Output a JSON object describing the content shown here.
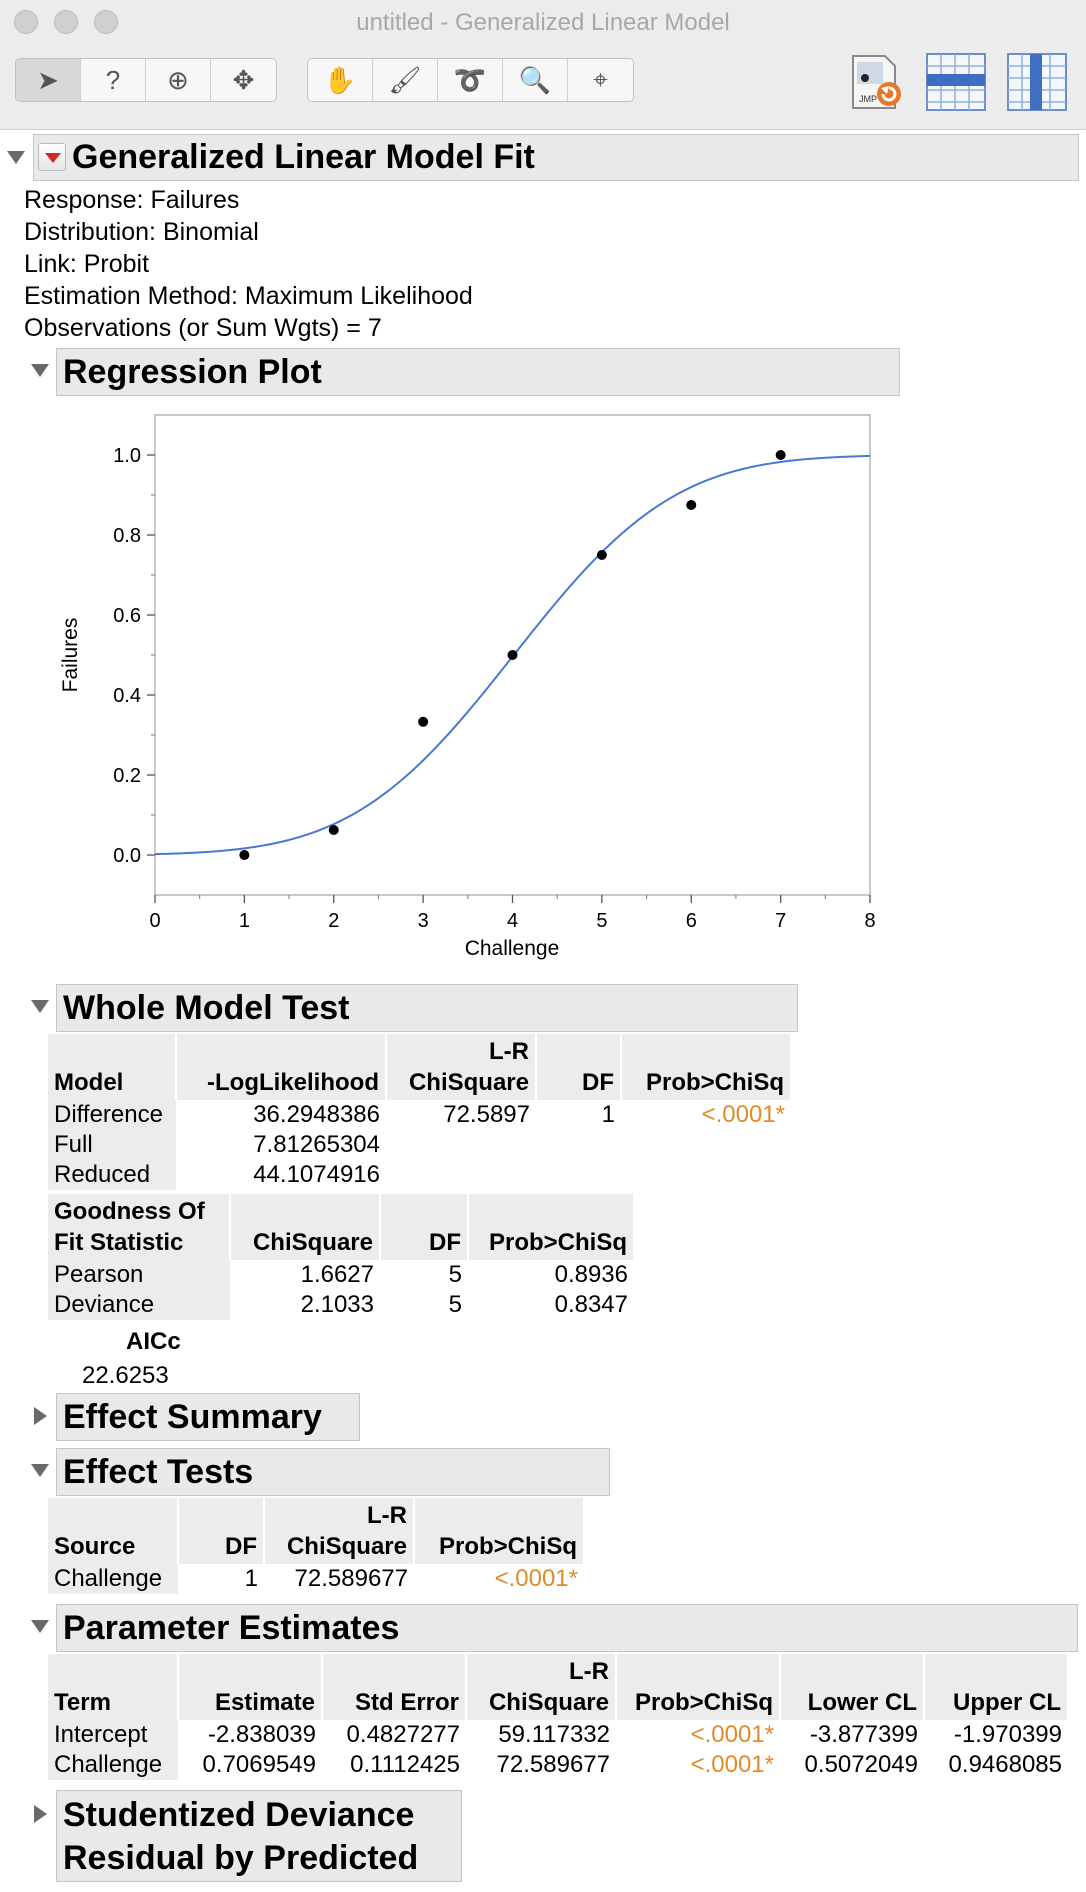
{
  "window": {
    "title": "untitled - Generalized Linear Model"
  },
  "toolbar": {
    "tools": [
      {
        "name": "arrow-tool",
        "glyph": "➤"
      },
      {
        "name": "help-tool",
        "glyph": "?"
      },
      {
        "name": "selection-tool",
        "glyph": "⊕"
      },
      {
        "name": "move-tool",
        "glyph": "✥"
      },
      {
        "name": "hand-tool",
        "glyph": "✋"
      },
      {
        "name": "brush-tool",
        "glyph": "🖌"
      },
      {
        "name": "lasso-tool",
        "glyph": "➰"
      },
      {
        "name": "magnifier-tool",
        "glyph": "🔍"
      },
      {
        "name": "crosshair-tool",
        "glyph": "⌖"
      }
    ]
  },
  "report": {
    "title": "Generalized Linear Model Fit",
    "info": {
      "response": "Response: Failures",
      "distribution": "Distribution: Binomial",
      "link": "Link: Probit",
      "method": "Estimation Method: Maximum Likelihood",
      "observations": "Observations (or Sum Wgts) = 7"
    },
    "regression_plot": {
      "title": "Regression Plot"
    },
    "whole_model_test": {
      "title": "Whole Model Test",
      "headers": {
        "model": "Model",
        "loglik": "-LogLikelihood",
        "lr_top": "L-R",
        "lr_bottom": "ChiSquare",
        "df": "DF",
        "prob": "Prob>ChiSq"
      },
      "rows": [
        {
          "model": "Difference",
          "loglik": "36.2948386",
          "chisq": "72.5897",
          "df": "1",
          "prob": "<.0001*"
        },
        {
          "model": "Full",
          "loglik": "7.81265304",
          "chisq": "",
          "df": "",
          "prob": ""
        },
        {
          "model": "Reduced",
          "loglik": "44.1074916",
          "chisq": "",
          "df": "",
          "prob": ""
        }
      ],
      "gof": {
        "headers": {
          "stat_top": "Goodness Of",
          "stat_bottom": "Fit Statistic",
          "chisq": "ChiSquare",
          "df": "DF",
          "prob": "Prob>ChiSq"
        },
        "rows": [
          {
            "stat": "Pearson",
            "chisq": "1.6627",
            "df": "5",
            "prob": "0.8936"
          },
          {
            "stat": "Deviance",
            "chisq": "2.1033",
            "df": "5",
            "prob": "0.8347"
          }
        ]
      },
      "aicc": {
        "label": "AICc",
        "value": "22.6253"
      }
    },
    "effect_summary": {
      "title": "Effect Summary"
    },
    "effect_tests": {
      "title": "Effect Tests",
      "headers": {
        "source": "Source",
        "df": "DF",
        "lr_top": "L-R",
        "lr_bottom": "ChiSquare",
        "prob": "Prob>ChiSq"
      },
      "rows": [
        {
          "source": "Challenge",
          "df": "1",
          "chisq": "72.589677",
          "prob": "<.0001*"
        }
      ]
    },
    "parameter_estimates": {
      "title": "Parameter Estimates",
      "headers": {
        "term": "Term",
        "estimate": "Estimate",
        "stderr": "Std Error",
        "lr_top": "L-R",
        "lr_bottom": "ChiSquare",
        "prob": "Prob>ChiSq",
        "lower": "Lower CL",
        "upper": "Upper CL"
      },
      "rows": [
        {
          "term": "Intercept",
          "estimate": "-2.838039",
          "stderr": "0.4827277",
          "chisq": "59.117332",
          "prob": "<.0001*",
          "lower": "-3.877399",
          "upper": "-1.970399"
        },
        {
          "term": "Challenge",
          "estimate": "0.7069549",
          "stderr": "0.1112425",
          "chisq": "72.589677",
          "prob": "<.0001*",
          "lower": "0.5072049",
          "upper": "0.9468085"
        }
      ]
    },
    "studentized": {
      "title_line1": "Studentized Deviance",
      "title_line2": "Residual by Predicted"
    }
  },
  "chart_data": {
    "type": "scatter",
    "xlabel": "Challenge",
    "ylabel": "Failures",
    "xlim": [
      0,
      8
    ],
    "ylim": [
      -0.1,
      1.1
    ],
    "xticks": [
      0,
      1,
      2,
      3,
      4,
      5,
      6,
      7,
      8
    ],
    "yticks": [
      0.0,
      0.2,
      0.4,
      0.6,
      0.8,
      1.0
    ],
    "ytick_labels": [
      "0.0",
      "0.2",
      "0.4",
      "0.6",
      "0.8",
      "1.0"
    ],
    "points": {
      "x": [
        1,
        2,
        3,
        4,
        5,
        6,
        7
      ],
      "y": [
        0.0,
        0.0625,
        0.333,
        0.5,
        0.75,
        0.875,
        1.0
      ]
    },
    "fit_curve": {
      "link": "probit",
      "intercept": -2.838039,
      "slope": 0.7069549,
      "color": "#4a78cf"
    },
    "grid": false
  }
}
